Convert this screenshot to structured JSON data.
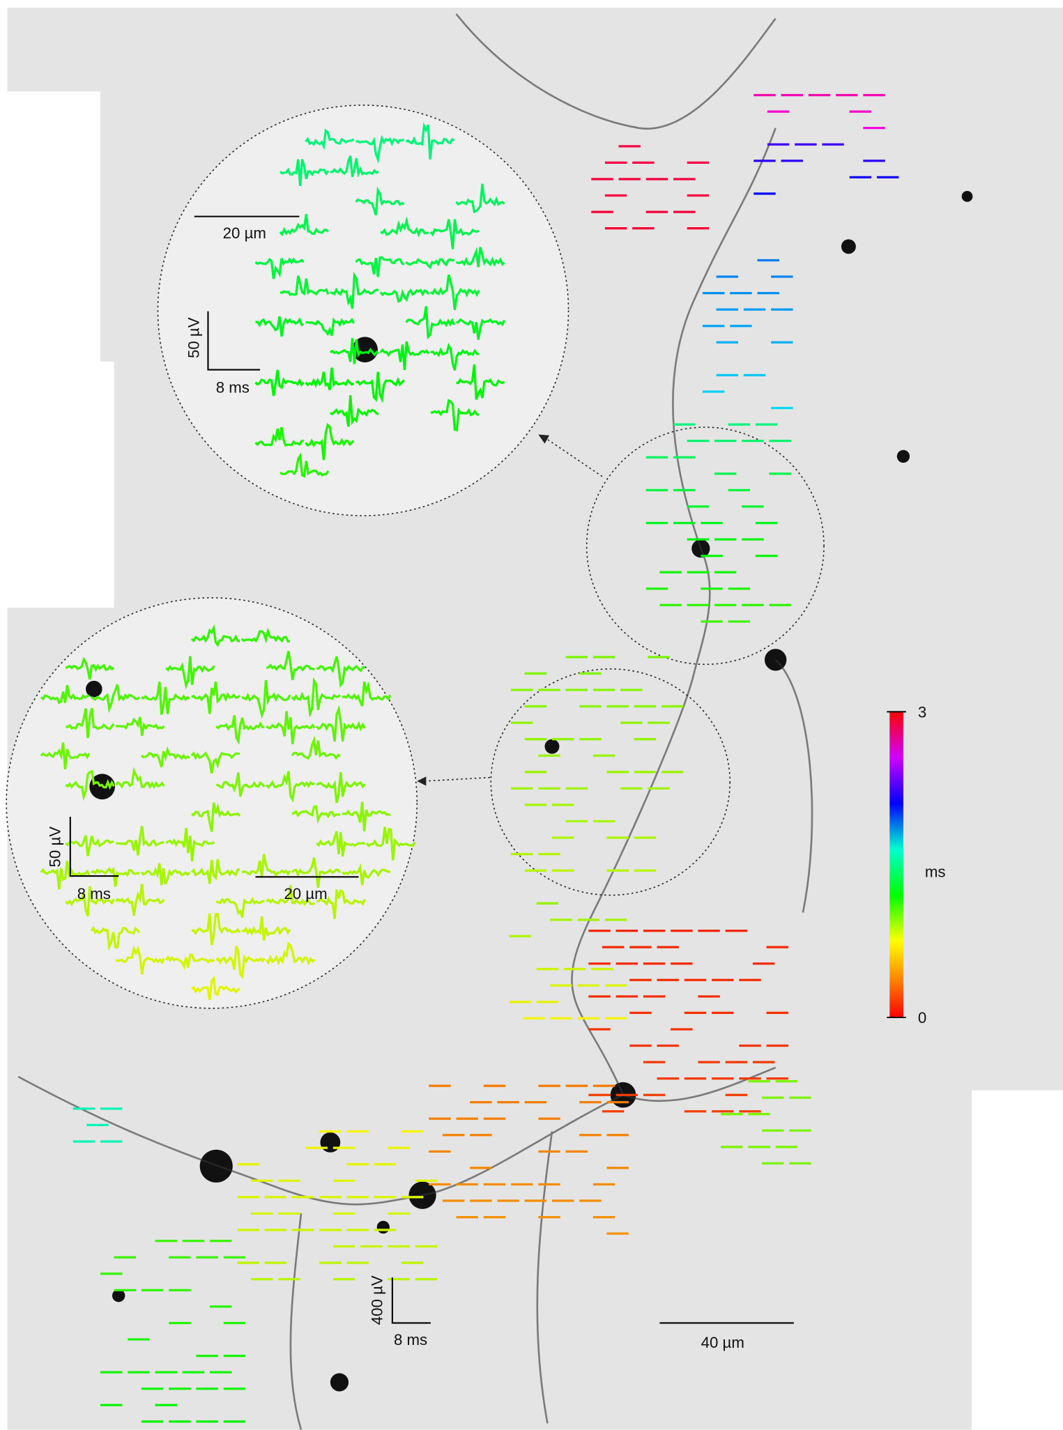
{
  "inset_top": {
    "scale_length": "20 µm",
    "scale_voltage": "50 µV",
    "scale_time": "8 ms"
  },
  "inset_middle": {
    "scale_length": "20 µm",
    "scale_voltage": "50 µV",
    "scale_time": "8 ms"
  },
  "main": {
    "scale_length": "40 µm",
    "scale_voltage": "400 µV",
    "scale_time": "8 ms"
  },
  "colorbar": {
    "label": "ms",
    "lim": [
      0,
      3
    ],
    "ticks": [
      0,
      3
    ]
  }
}
